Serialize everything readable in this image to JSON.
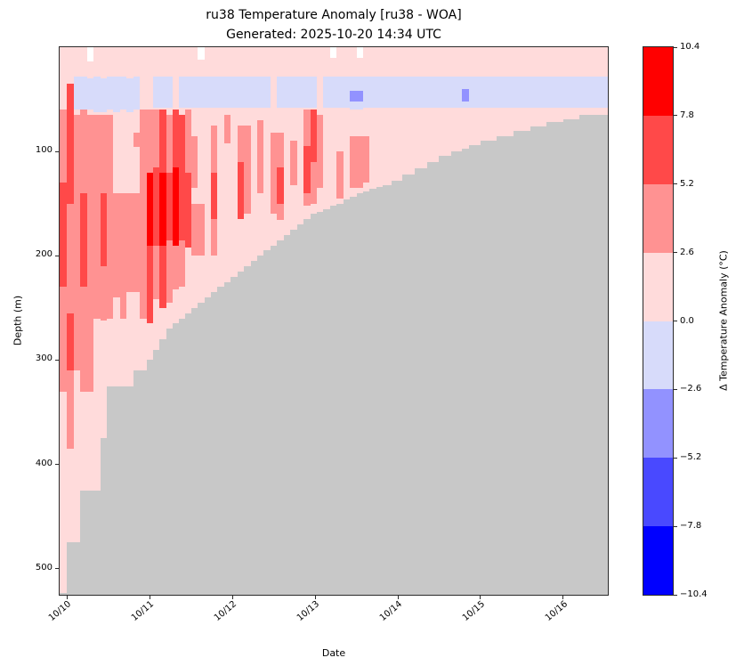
{
  "title": {
    "line1": "ru38 Temperature Anomaly [ru38 - WOA]",
    "line2": "Generated: 2025-10-20 14:34 UTC"
  },
  "chart_data": {
    "type": "heatmap",
    "title": "ru38 Temperature Anomaly [ru38 - WOA]",
    "subtitle": "Generated: 2025-10-20 14:34 UTC",
    "xlabel": "Date",
    "ylabel": "Depth (m)",
    "colorbar_label": "Δ Temperature Anomaly (°C)",
    "x_range_days": [
      9.91,
      16.54
    ],
    "depth_range_m": [
      0,
      525
    ],
    "y_ticks": [
      100,
      200,
      300,
      400,
      500
    ],
    "x_ticks": [
      {
        "t": 10,
        "label": "10/10"
      },
      {
        "t": 11,
        "label": "10/11"
      },
      {
        "t": 12,
        "label": "10/12"
      },
      {
        "t": 13,
        "label": "10/13"
      },
      {
        "t": 14,
        "label": "10/14"
      },
      {
        "t": 15,
        "label": "10/15"
      },
      {
        "t": 16,
        "label": "10/16"
      }
    ],
    "colorbar_ticks": [
      "10.4",
      "7.8",
      "5.2",
      "2.6",
      "0.0",
      "−2.6",
      "−5.2",
      "−7.8",
      "−10.4"
    ],
    "levels": [
      {
        "code": "p4",
        "range": [
          7.8,
          10.4
        ],
        "color": "#ff0000"
      },
      {
        "code": "p3",
        "range": [
          5.2,
          7.8
        ],
        "color": "#ff4949"
      },
      {
        "code": "p2",
        "range": [
          2.6,
          5.2
        ],
        "color": "#ff9292"
      },
      {
        "code": "p1",
        "range": [
          0.0,
          2.6
        ],
        "color": "#ffdbdb"
      },
      {
        "code": "n1",
        "range": [
          -2.6,
          0.0
        ],
        "color": "#d7dbfa"
      },
      {
        "code": "n2",
        "range": [
          -5.2,
          -2.6
        ],
        "color": "#9292ff"
      },
      {
        "code": "n3",
        "range": [
          -7.8,
          -5.2
        ],
        "color": "#4949ff"
      },
      {
        "code": "n4",
        "range": [
          -10.4,
          -7.8
        ],
        "color": "#0000ff"
      }
    ],
    "gap_color": "#ffffff",
    "no_data_color": "#c8c8c8",
    "background_level": "p1",
    "columns_format": "[day_start, day_end, max_data_depth_m, [[depth_from_m, depth_to_m, level_code], ...]]",
    "columns": [
      [
        9.91,
        10.0,
        523,
        [
          [
            60,
            130,
            "p2"
          ],
          [
            130,
            230,
            "p3"
          ],
          [
            230,
            330,
            "p2"
          ]
        ]
      ],
      [
        10.0,
        10.08,
        475,
        [
          [
            35,
            150,
            "p3"
          ],
          [
            150,
            255,
            "p2"
          ],
          [
            255,
            310,
            "p3"
          ],
          [
            310,
            385,
            "p2"
          ]
        ]
      ],
      [
        10.08,
        10.16,
        475,
        [
          [
            28,
            60,
            "n1"
          ],
          [
            65,
            310,
            "p2"
          ]
        ]
      ],
      [
        10.16,
        10.24,
        425,
        [
          [
            28,
            60,
            "n1"
          ],
          [
            60,
            140,
            "p2"
          ],
          [
            140,
            230,
            "p3"
          ],
          [
            230,
            330,
            "p2"
          ]
        ]
      ],
      [
        10.24,
        10.32,
        425,
        [
          [
            0,
            14,
            "gap"
          ],
          [
            30,
            60,
            "n1"
          ],
          [
            65,
            330,
            "p2"
          ]
        ]
      ],
      [
        10.32,
        10.4,
        425,
        [
          [
            28,
            62,
            "n1"
          ],
          [
            65,
            260,
            "p2"
          ]
        ]
      ],
      [
        10.4,
        10.48,
        375,
        [
          [
            30,
            62,
            "n1"
          ],
          [
            65,
            140,
            "p2"
          ],
          [
            140,
            210,
            "p3"
          ],
          [
            210,
            262,
            "p2"
          ]
        ]
      ],
      [
        10.48,
        10.56,
        325,
        [
          [
            28,
            60,
            "n1"
          ],
          [
            65,
            260,
            "p2"
          ]
        ]
      ],
      [
        10.56,
        10.64,
        325,
        [
          [
            28,
            62,
            "n1"
          ],
          [
            140,
            240,
            "p2"
          ]
        ]
      ],
      [
        10.64,
        10.72,
        325,
        [
          [
            28,
            60,
            "n1"
          ],
          [
            140,
            260,
            "p2"
          ]
        ]
      ],
      [
        10.72,
        10.8,
        325,
        [
          [
            30,
            62,
            "n1"
          ],
          [
            140,
            235,
            "p2"
          ]
        ]
      ],
      [
        10.8,
        10.88,
        310,
        [
          [
            28,
            60,
            "n1"
          ],
          [
            82,
            96,
            "p2"
          ],
          [
            140,
            235,
            "p2"
          ]
        ]
      ],
      [
        10.88,
        10.96,
        310,
        [
          [
            60,
            260,
            "p2"
          ]
        ]
      ],
      [
        10.96,
        11.04,
        300,
        [
          [
            60,
            120,
            "p2"
          ],
          [
            120,
            190,
            "p4"
          ],
          [
            190,
            265,
            "p3"
          ]
        ]
      ],
      [
        11.04,
        11.12,
        290,
        [
          [
            28,
            58,
            "n1"
          ],
          [
            60,
            115,
            "p2"
          ],
          [
            115,
            190,
            "p3"
          ],
          [
            190,
            242,
            "p2"
          ]
        ]
      ],
      [
        11.12,
        11.2,
        280,
        [
          [
            28,
            58,
            "n1"
          ],
          [
            60,
            120,
            "p3"
          ],
          [
            120,
            190,
            "p4"
          ],
          [
            190,
            250,
            "p3"
          ]
        ]
      ],
      [
        11.2,
        11.28,
        270,
        [
          [
            28,
            58,
            "n1"
          ],
          [
            65,
            120,
            "p2"
          ],
          [
            120,
            185,
            "p3"
          ],
          [
            185,
            245,
            "p2"
          ]
        ]
      ],
      [
        11.28,
        11.35,
        265,
        [
          [
            60,
            115,
            "p3"
          ],
          [
            115,
            190,
            "p4"
          ],
          [
            190,
            232,
            "p2"
          ]
        ]
      ],
      [
        11.35,
        11.43,
        260,
        [
          [
            28,
            58,
            "n1"
          ],
          [
            65,
            185,
            "p3"
          ],
          [
            185,
            230,
            "p2"
          ]
        ]
      ],
      [
        11.43,
        11.5,
        255,
        [
          [
            28,
            58,
            "n1"
          ],
          [
            60,
            120,
            "p2"
          ],
          [
            120,
            192,
            "p3"
          ]
        ]
      ],
      [
        11.5,
        11.58,
        250,
        [
          [
            28,
            58,
            "n1"
          ],
          [
            85,
            135,
            "p2"
          ],
          [
            150,
            200,
            "p2"
          ]
        ]
      ],
      [
        11.58,
        11.66,
        245,
        [
          [
            0,
            12,
            "gap"
          ],
          [
            28,
            58,
            "n1"
          ],
          [
            150,
            200,
            "p2"
          ]
        ]
      ],
      [
        11.66,
        11.74,
        240,
        [
          [
            28,
            58,
            "n1"
          ]
        ]
      ],
      [
        11.74,
        11.82,
        235,
        [
          [
            28,
            58,
            "n1"
          ],
          [
            75,
            120,
            "p2"
          ],
          [
            120,
            165,
            "p3"
          ],
          [
            165,
            200,
            "p2"
          ]
        ]
      ],
      [
        11.82,
        11.9,
        230,
        [
          [
            28,
            58,
            "n1"
          ]
        ]
      ],
      [
        11.9,
        11.98,
        225,
        [
          [
            28,
            58,
            "n1"
          ],
          [
            65,
            92,
            "p2"
          ]
        ]
      ],
      [
        11.98,
        12.06,
        220,
        [
          [
            28,
            58,
            "n1"
          ]
        ]
      ],
      [
        12.06,
        12.14,
        215,
        [
          [
            28,
            58,
            "n1"
          ],
          [
            75,
            110,
            "p2"
          ],
          [
            110,
            165,
            "p3"
          ]
        ]
      ],
      [
        12.14,
        12.22,
        210,
        [
          [
            28,
            58,
            "n1"
          ],
          [
            75,
            160,
            "p2"
          ]
        ]
      ],
      [
        12.22,
        12.3,
        205,
        [
          [
            28,
            58,
            "n1"
          ]
        ]
      ],
      [
        12.3,
        12.38,
        200,
        [
          [
            28,
            58,
            "n1"
          ],
          [
            70,
            140,
            "p2"
          ]
        ]
      ],
      [
        12.38,
        12.46,
        195,
        [
          [
            28,
            58,
            "n1"
          ]
        ]
      ],
      [
        12.46,
        12.54,
        190,
        [
          [
            82,
            160,
            "p2"
          ]
        ]
      ],
      [
        12.54,
        12.62,
        185,
        [
          [
            28,
            58,
            "n1"
          ],
          [
            82,
            115,
            "p2"
          ],
          [
            115,
            150,
            "p3"
          ],
          [
            150,
            166,
            "p2"
          ]
        ]
      ],
      [
        12.62,
        12.7,
        180,
        [
          [
            28,
            58,
            "n1"
          ]
        ]
      ],
      [
        12.7,
        12.78,
        175,
        [
          [
            28,
            58,
            "n1"
          ],
          [
            90,
            132,
            "p2"
          ]
        ]
      ],
      [
        12.78,
        12.86,
        170,
        [
          [
            28,
            58,
            "n1"
          ]
        ]
      ],
      [
        12.86,
        12.94,
        165,
        [
          [
            28,
            58,
            "n1"
          ],
          [
            60,
            95,
            "p2"
          ],
          [
            95,
            140,
            "p3"
          ],
          [
            140,
            152,
            "p2"
          ]
        ]
      ],
      [
        12.94,
        13.02,
        160,
        [
          [
            28,
            58,
            "n1"
          ],
          [
            60,
            110,
            "p3"
          ],
          [
            110,
            150,
            "p2"
          ]
        ]
      ],
      [
        13.02,
        13.1,
        158,
        [
          [
            65,
            135,
            "p2"
          ]
        ]
      ],
      [
        13.1,
        13.18,
        155,
        [
          [
            28,
            58,
            "n1"
          ]
        ]
      ],
      [
        13.18,
        13.26,
        152,
        [
          [
            0,
            10,
            "gap"
          ],
          [
            28,
            58,
            "n1"
          ]
        ]
      ],
      [
        13.26,
        13.34,
        150,
        [
          [
            28,
            58,
            "n1"
          ],
          [
            100,
            145,
            "p2"
          ]
        ]
      ],
      [
        13.34,
        13.42,
        146,
        [
          [
            28,
            58,
            "n1"
          ]
        ]
      ],
      [
        13.42,
        13.5,
        143,
        [
          [
            28,
            42,
            "n1"
          ],
          [
            42,
            52,
            "n2"
          ],
          [
            52,
            60,
            "n1"
          ],
          [
            85,
            135,
            "p2"
          ]
        ]
      ],
      [
        13.5,
        13.58,
        140,
        [
          [
            0,
            10,
            "gap"
          ],
          [
            28,
            42,
            "n1"
          ],
          [
            42,
            52,
            "n2"
          ],
          [
            52,
            60,
            "n1"
          ],
          [
            85,
            135,
            "p2"
          ]
        ]
      ],
      [
        13.58,
        13.66,
        138,
        [
          [
            28,
            58,
            "n1"
          ],
          [
            85,
            130,
            "p2"
          ]
        ]
      ],
      [
        13.66,
        13.74,
        136,
        [
          [
            28,
            58,
            "n1"
          ]
        ]
      ],
      [
        13.74,
        13.82,
        134,
        [
          [
            28,
            58,
            "n1"
          ]
        ]
      ],
      [
        13.82,
        13.92,
        132,
        [
          [
            28,
            58,
            "n1"
          ]
        ]
      ],
      [
        13.92,
        14.05,
        128,
        [
          [
            28,
            58,
            "n1"
          ]
        ]
      ],
      [
        14.05,
        14.2,
        122,
        [
          [
            28,
            58,
            "n1"
          ]
        ]
      ],
      [
        14.2,
        14.35,
        116,
        [
          [
            28,
            58,
            "n1"
          ]
        ]
      ],
      [
        14.35,
        14.5,
        110,
        [
          [
            28,
            58,
            "n1"
          ]
        ]
      ],
      [
        14.5,
        14.65,
        104,
        [
          [
            28,
            58,
            "n1"
          ]
        ]
      ],
      [
        14.65,
        14.78,
        100,
        [
          [
            28,
            58,
            "n1"
          ]
        ]
      ],
      [
        14.78,
        14.86,
        97,
        [
          [
            28,
            40,
            "n1"
          ],
          [
            40,
            52,
            "n2"
          ],
          [
            52,
            58,
            "n1"
          ]
        ]
      ],
      [
        14.86,
        15.0,
        94,
        [
          [
            28,
            58,
            "n1"
          ]
        ]
      ],
      [
        15.0,
        15.2,
        90,
        [
          [
            28,
            58,
            "n1"
          ]
        ]
      ],
      [
        15.2,
        15.4,
        85,
        [
          [
            28,
            58,
            "n1"
          ]
        ]
      ],
      [
        15.4,
        15.6,
        80,
        [
          [
            28,
            58,
            "n1"
          ]
        ]
      ],
      [
        15.6,
        15.8,
        76,
        [
          [
            28,
            58,
            "n1"
          ]
        ]
      ],
      [
        15.8,
        16.0,
        72,
        [
          [
            28,
            58,
            "n1"
          ]
        ]
      ],
      [
        16.0,
        16.2,
        69,
        [
          [
            28,
            58,
            "n1"
          ]
        ]
      ],
      [
        16.2,
        16.54,
        65,
        [
          [
            28,
            58,
            "n1"
          ]
        ]
      ]
    ]
  }
}
